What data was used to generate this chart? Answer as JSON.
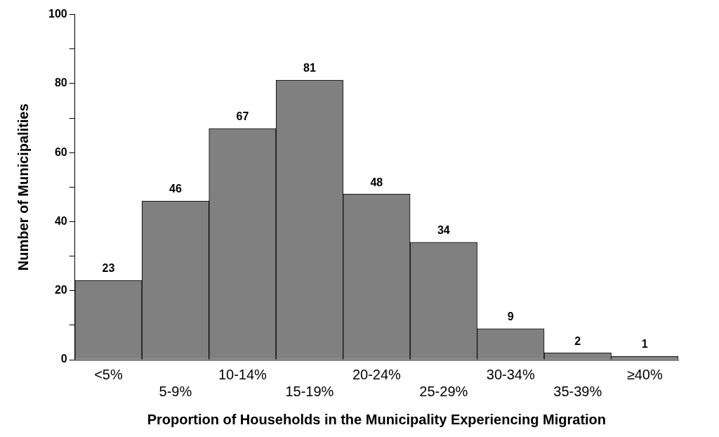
{
  "chart_data": {
    "type": "bar",
    "xlabel": "Proportion of Households in the Municipality Experiencing Migration",
    "ylabel": "Number of Municipalities",
    "categories": [
      "<5%",
      "5-9%",
      "10-14%",
      "15-19%",
      "20-24%",
      "25-29%",
      "30-34%",
      "35-39%",
      "≥40%"
    ],
    "values": [
      23,
      46,
      67,
      81,
      48,
      34,
      9,
      2,
      1
    ],
    "color": "#808080",
    "ylim": [
      0,
      100
    ],
    "yticks": [
      0,
      {
        "value": 10,
        "label": null
      },
      20,
      {
        "value": 30,
        "label": null
      },
      40,
      {
        "value": 50,
        "label": null
      },
      60,
      {
        "value": 70,
        "label": null
      },
      80,
      {
        "value": 90,
        "label": null
      },
      100
    ],
    "grid": false,
    "data_labels": true,
    "legend": false
  }
}
